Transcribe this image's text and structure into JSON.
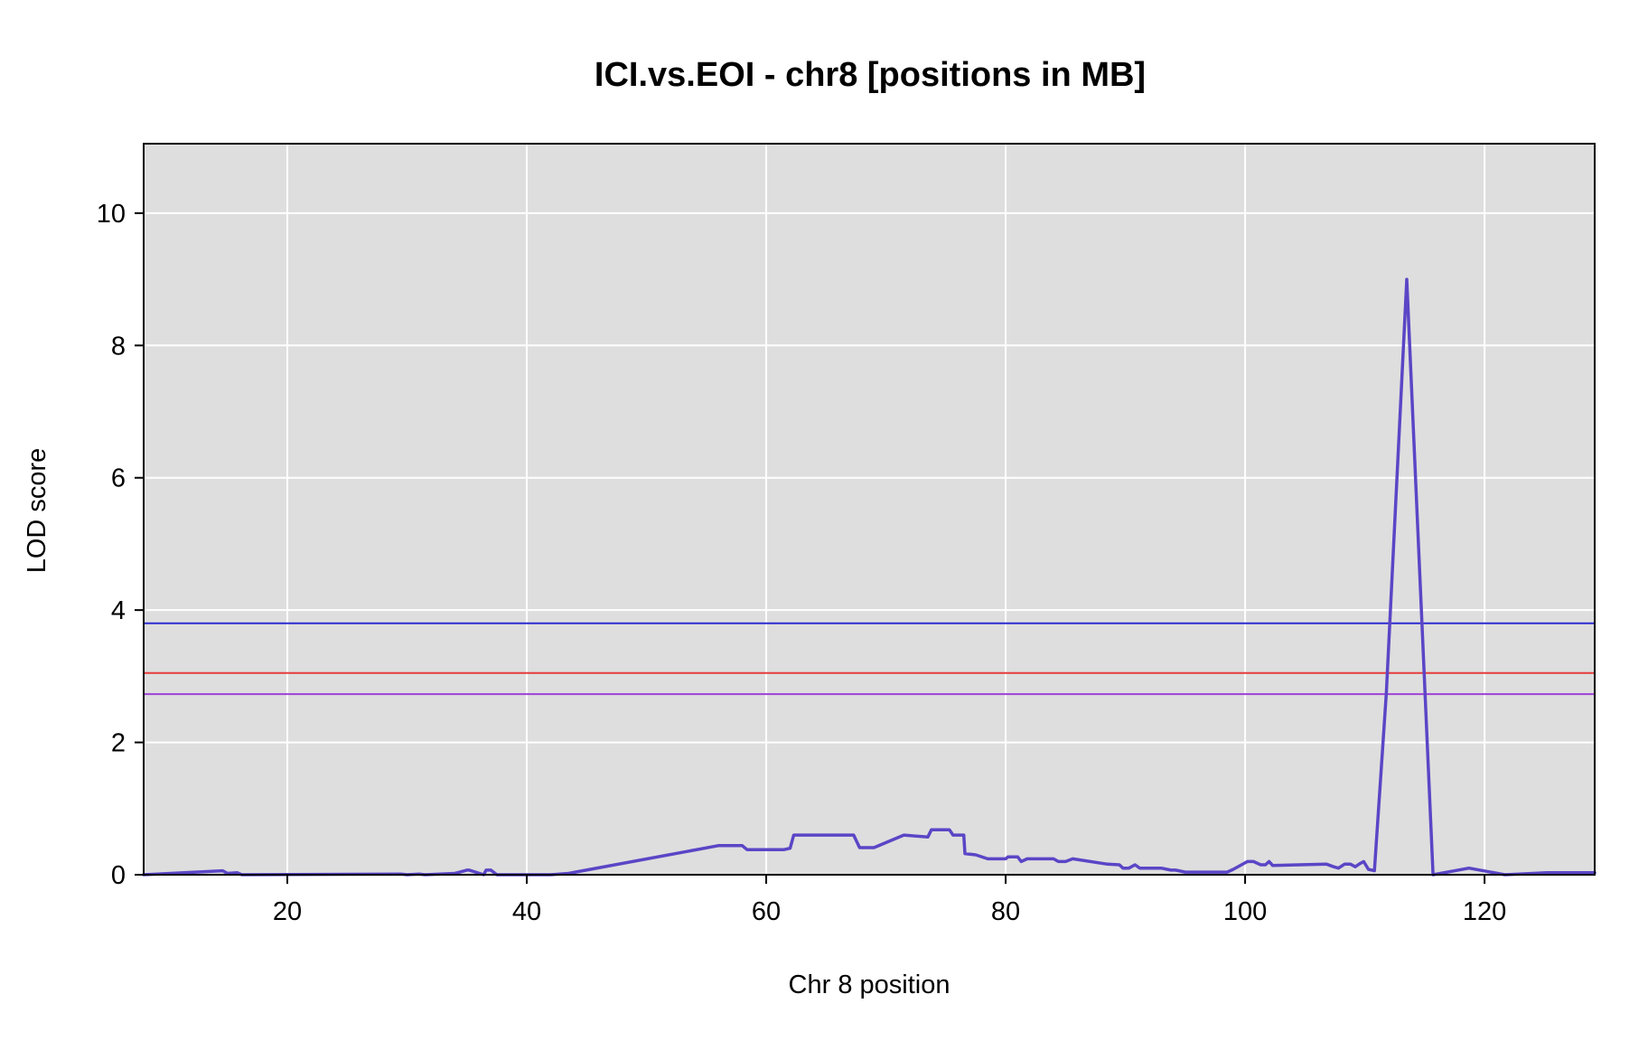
{
  "chart_data": {
    "type": "line",
    "title": "ICI.vs.EOI - chr8 [positions in MB]",
    "xlabel": "Chr 8 position",
    "ylabel": "LOD score",
    "xlim": [
      8,
      129.2
    ],
    "ylim": [
      0,
      11.05
    ],
    "xticks": [
      20,
      40,
      60,
      80,
      100,
      120
    ],
    "yticks": [
      0,
      2,
      4,
      6,
      8,
      10
    ],
    "grid": true,
    "legend": "none",
    "colors": {
      "panel_background": "#dedede",
      "grid": "#ffffff",
      "series": "#5b45c6"
    },
    "thresholds": [
      {
        "value": 3.8,
        "color": "#2b2bd0"
      },
      {
        "value": 3.05,
        "color": "#e53b3b"
      },
      {
        "value": 2.73,
        "color": "#a040d8"
      }
    ],
    "series": [
      {
        "color": "#5b45c6",
        "x": [
          8.0,
          14.6,
          15.0,
          15.8,
          16.2,
          29.5,
          30.0,
          31.0,
          31.5,
          34.0,
          35.0,
          35.2,
          36.4,
          36.6,
          37.0,
          37.5,
          42.0,
          43.5,
          56.0,
          58.0,
          58.4,
          61.5,
          62.0,
          62.3,
          67.3,
          67.8,
          69.0,
          71.5,
          73.5,
          73.8,
          75.3,
          75.6,
          76.5,
          76.6,
          77.5,
          78.5,
          80.0,
          80.2,
          81.0,
          81.3,
          81.8,
          84.0,
          84.4,
          85.0,
          85.6,
          88.5,
          89.5,
          89.8,
          90.3,
          90.8,
          91.2,
          93.0,
          93.8,
          94.2,
          95.0,
          98.5,
          99.0,
          100.2,
          100.7,
          101.3,
          101.7,
          102.0,
          102.3,
          106.8,
          107.4,
          107.8,
          108.3,
          108.8,
          109.2,
          109.6,
          109.9,
          110.3,
          110.8,
          111.8,
          113.5,
          115.7,
          118.7,
          121.7,
          125.2,
          129.2
        ],
        "y": [
          0.0,
          0.06,
          0.02,
          0.03,
          0.0,
          0.01,
          0.0,
          0.01,
          0.0,
          0.02,
          0.07,
          0.07,
          0.0,
          0.07,
          0.07,
          0.0,
          0.0,
          0.02,
          0.44,
          0.44,
          0.38,
          0.38,
          0.4,
          0.6,
          0.6,
          0.41,
          0.41,
          0.6,
          0.57,
          0.68,
          0.68,
          0.6,
          0.6,
          0.32,
          0.3,
          0.24,
          0.24,
          0.27,
          0.27,
          0.2,
          0.24,
          0.24,
          0.2,
          0.2,
          0.24,
          0.16,
          0.15,
          0.1,
          0.1,
          0.15,
          0.1,
          0.1,
          0.07,
          0.07,
          0.04,
          0.04,
          0.08,
          0.2,
          0.2,
          0.15,
          0.15,
          0.2,
          0.14,
          0.16,
          0.12,
          0.1,
          0.16,
          0.16,
          0.12,
          0.17,
          0.2,
          0.08,
          0.06,
          2.75,
          9.0,
          0.0,
          0.1,
          0.0,
          0.03,
          0.03
        ]
      }
    ]
  }
}
